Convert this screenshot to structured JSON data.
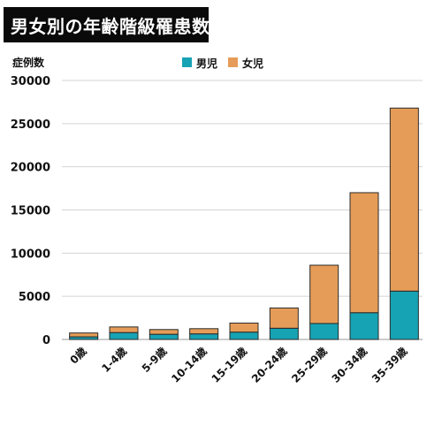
{
  "chart_data": {
    "type": "bar",
    "stacked": true,
    "title": "男女別の年齢階級罹患数",
    "ylabel": "症例数",
    "xlabel": "",
    "categories": [
      "0歳",
      "1-4歳",
      "5-9歳",
      "10-14歳",
      "15-19歳",
      "20-24歳",
      "25-29歳",
      "30-34歳",
      "35-39歳"
    ],
    "series": [
      {
        "name": "男児",
        "color": "#16a3b4",
        "values": [
          300,
          800,
          600,
          650,
          850,
          1300,
          1850,
          3100,
          5600
        ]
      },
      {
        "name": "女児",
        "color": "#e59c58",
        "values": [
          450,
          650,
          550,
          600,
          1050,
          2350,
          6750,
          13900,
          21200
        ]
      }
    ],
    "ylim": [
      0,
      30000
    ],
    "yticks": [
      0,
      5000,
      10000,
      15000,
      20000,
      25000,
      30000
    ],
    "grid": true,
    "legend": "top-center"
  }
}
